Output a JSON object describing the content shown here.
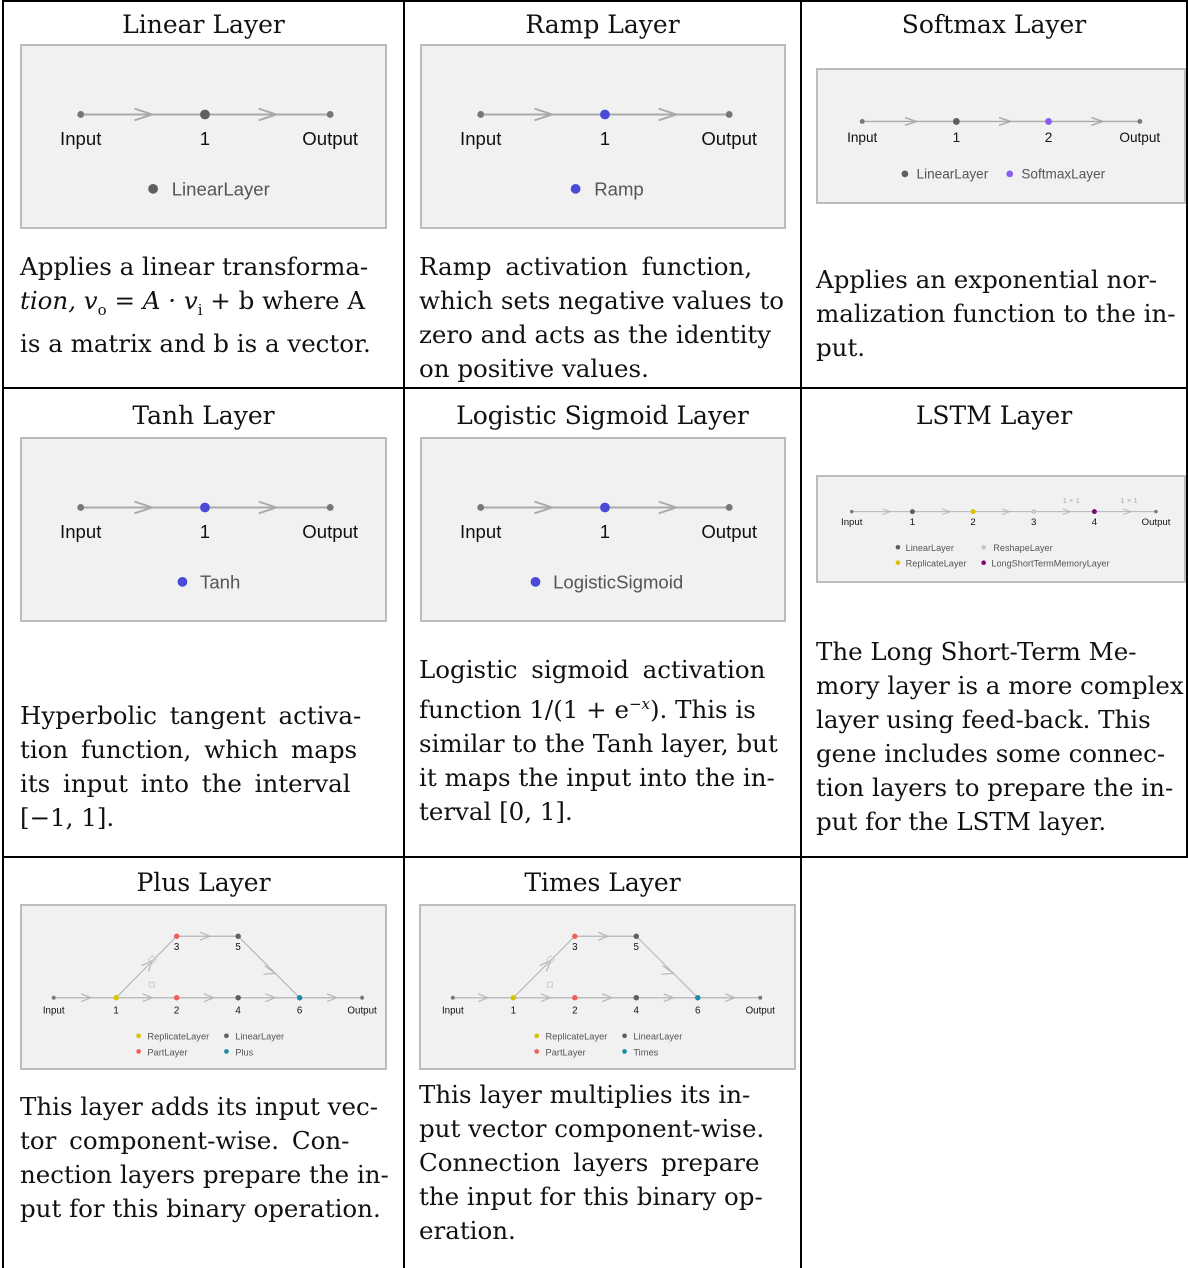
{
  "cells": {
    "linear": {
      "title": "Linear Layer",
      "nodes": [
        "Input",
        "1",
        "Output"
      ],
      "legend": [
        "LinearLayer"
      ],
      "desc_a": "Applies a linear transforma-",
      "desc_b": "tion, v",
      "desc_c": "o",
      "desc_d": " = A · v",
      "desc_e": "i",
      "desc_f": " + b where A",
      "desc_g": "is a matrix and b is a vector."
    },
    "ramp": {
      "title": "Ramp Layer",
      "nodes": [
        "Input",
        "1",
        "Output"
      ],
      "legend": [
        "Ramp"
      ],
      "desc_lines": [
        "Ramp  activation  function,",
        "which sets negative values to",
        "zero and acts as the identity",
        "on positive values."
      ]
    },
    "softmax": {
      "title": "Softmax Layer",
      "nodes": [
        "Input",
        "1",
        "2",
        "Output"
      ],
      "legend": [
        "LinearLayer",
        "SoftmaxLayer"
      ],
      "desc_lines": [
        "Applies an exponential nor-",
        "malization function to the in-",
        "put."
      ]
    },
    "tanh": {
      "title": "Tanh Layer",
      "nodes": [
        "Input",
        "1",
        "Output"
      ],
      "legend": [
        "Tanh"
      ],
      "desc_lines": [
        "Hyperbolic  tangent  activa-",
        "tion  function,  which  maps",
        "its  input  into  the  interval",
        "[−1, 1]."
      ]
    },
    "logistic": {
      "title": "Logistic Sigmoid Layer",
      "nodes": [
        "Input",
        "1",
        "Output"
      ],
      "legend": [
        "LogisticSigmoid"
      ],
      "desc_lines": [
        "Logistic  sigmoid  activation",
        "function 1/(1 + e",
        "−x",
        "). This is",
        "similar to the Tanh layer, but",
        "it maps the input into the in-",
        "terval [0, 1]."
      ]
    },
    "lstm": {
      "title": "LSTM Layer",
      "nodes": [
        "Input",
        "1",
        "2",
        "3",
        "4",
        "Output"
      ],
      "edge_labels": [
        "1 × 1",
        "1 × 1"
      ],
      "legend": [
        "LinearLayer",
        "ReshapeLayer",
        "ReplicateLayer",
        "LongShortTermMemoryLayer"
      ],
      "desc_lines": [
        "The Long Short-Term Me-",
        "mory layer is a more complex",
        "layer using feed-back.  This",
        "gene includes some connec-",
        "tion layers to prepare the in-",
        "put for the LSTM layer."
      ]
    },
    "plus": {
      "title": "Plus Layer",
      "nodes": [
        "Input",
        "1",
        "2",
        "3",
        "4",
        "5",
        "6",
        "Output"
      ],
      "legend": [
        "ReplicateLayer",
        "LinearLayer",
        "PartLayer",
        "Plus"
      ],
      "desc_lines": [
        "This layer adds its input vec-",
        "tor  component-wise.   Con-",
        "nection layers prepare the in-",
        "put for this binary operation."
      ]
    },
    "times": {
      "title": "Times Layer",
      "nodes": [
        "Input",
        "1",
        "2",
        "3",
        "4",
        "5",
        "6",
        "Output"
      ],
      "legend": [
        "ReplicateLayer",
        "LinearLayer",
        "PartLayer",
        "Times"
      ],
      "desc_lines": [
        "This layer multiplies its in-",
        "put vector component-wise.",
        "Connection  layers  prepare",
        "the input for this binary op-",
        "eration."
      ]
    }
  },
  "colors": {
    "linear_node": "#5f5f5f",
    "activation_node": "#4a4ad8",
    "softmax_node": "#8a5cf0",
    "replicate_node": "#d8c200",
    "reshape_node": "#c8c8c8",
    "lstm_node": "#7a0a7a",
    "part_node": "#f0605a",
    "combine_node": "#1a8aa8",
    "edge": "#aaaaaa",
    "box_bg": "#f1f1f1"
  }
}
